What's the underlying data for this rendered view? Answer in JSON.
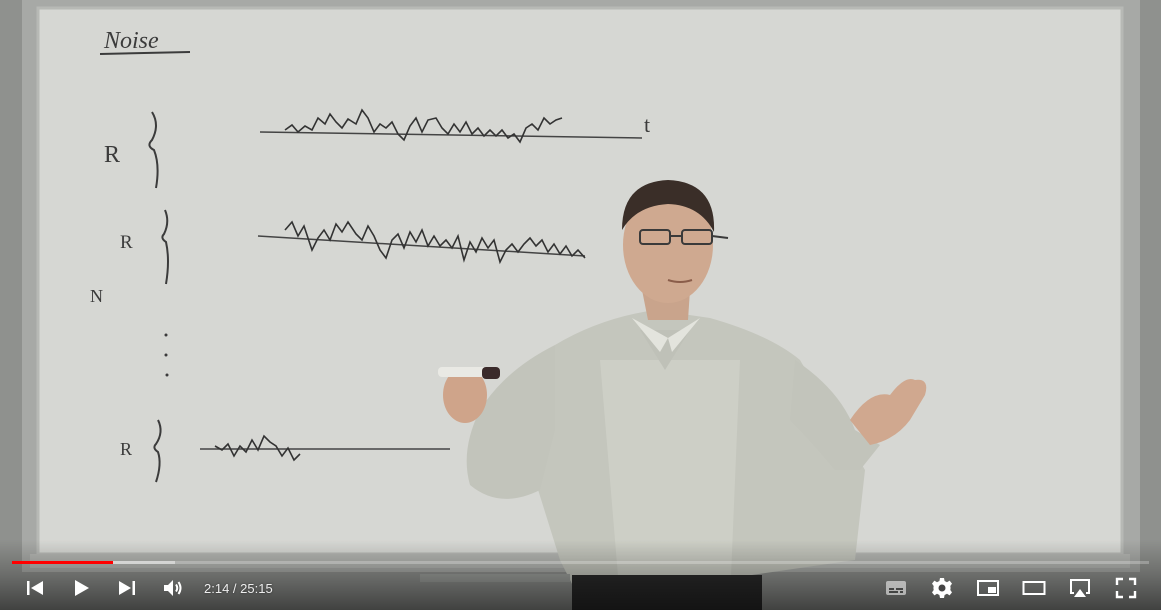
{
  "player": {
    "progress_played_fraction": 0.089,
    "progress_buffered_fraction": 0.143,
    "time": {
      "current": "2:14",
      "separator": " / ",
      "duration": "25:15"
    },
    "controls_left": [
      {
        "name": "previous-button",
        "icon": "skip-previous-icon"
      },
      {
        "name": "play-button",
        "icon": "play-icon"
      },
      {
        "name": "next-button",
        "icon": "skip-next-icon"
      },
      {
        "name": "volume-button",
        "icon": "volume-icon"
      }
    ],
    "controls_right": [
      {
        "name": "subtitles-button",
        "icon": "subtitles-icon"
      },
      {
        "name": "settings-button",
        "icon": "gear-icon"
      },
      {
        "name": "miniplayer-button",
        "icon": "miniplayer-icon"
      },
      {
        "name": "theater-mode-button",
        "icon": "theater-icon"
      },
      {
        "name": "airplay-button",
        "icon": "airplay-icon"
      },
      {
        "name": "fullscreen-button",
        "icon": "fullscreen-icon"
      }
    ],
    "colors": {
      "progress_played": "#ff0000",
      "control_icons": "#ffffff"
    }
  },
  "whiteboard": {
    "title": "Noise",
    "label_r1": "R",
    "label_r2": "R",
    "label_n": "N",
    "label_r3": "R",
    "axis_label": "t"
  }
}
